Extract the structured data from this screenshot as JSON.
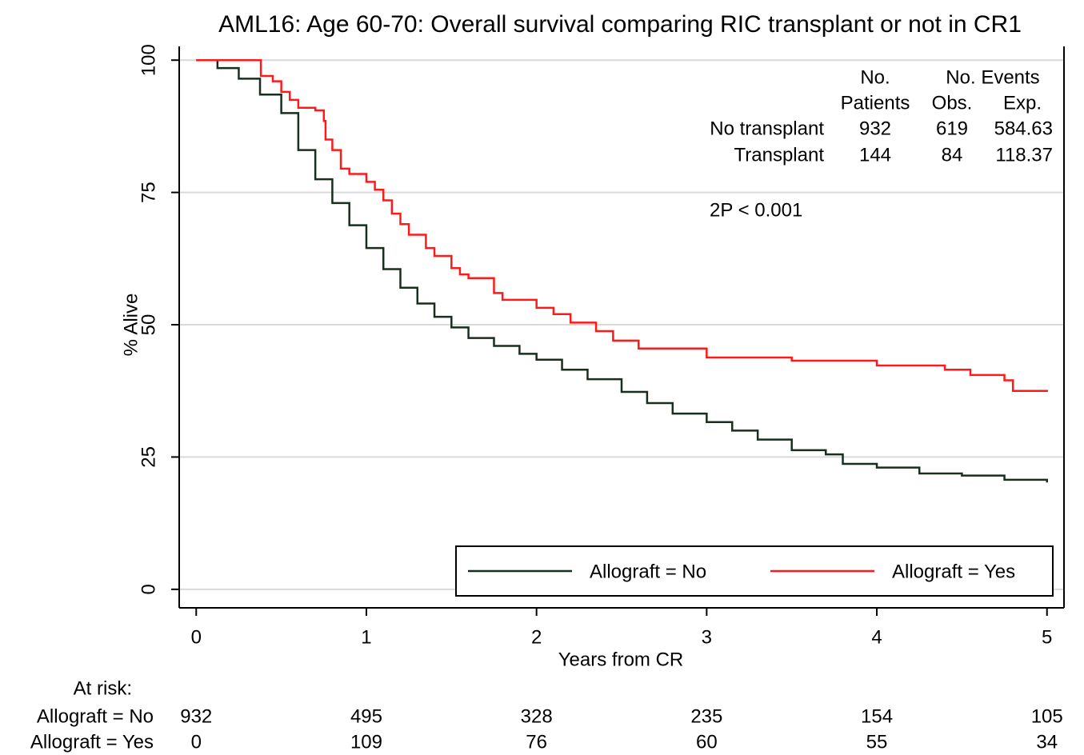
{
  "chart_data": {
    "type": "step",
    "title": "AML16: Age 60-70: Overall survival comparing RIC transplant or not in CR1",
    "x_label": "Years from CR",
    "y_label": "% Alive",
    "xlim": [
      -0.1,
      5.1
    ],
    "xticks": [
      0,
      1,
      2,
      3,
      4,
      5
    ],
    "ylim": [
      -3.5,
      102.6
    ],
    "yticks": [
      0,
      25,
      50,
      75,
      100
    ],
    "grid": true,
    "legend_position": "bottom-right",
    "series": [
      {
        "name": "Allograft = No",
        "color": "#1a2e1e",
        "x": [
          0,
          0.125,
          0.25,
          0.375,
          0.5,
          0.6,
          0.7,
          0.8,
          0.9,
          1.0,
          1.1,
          1.2,
          1.3,
          1.4,
          1.5,
          1.6,
          1.75,
          1.9,
          2.0,
          2.15,
          2.3,
          2.5,
          2.65,
          2.8,
          3.0,
          3.15,
          3.3,
          3.5,
          3.7,
          3.8,
          4.0,
          4.25,
          4.5,
          4.75,
          5.0
        ],
        "values": [
          100,
          98.5,
          96.5,
          93.5,
          90,
          83,
          77.5,
          73,
          68.8,
          64.5,
          60.5,
          57,
          54,
          51.5,
          49.5,
          47.5,
          46,
          44.5,
          43.4,
          41.5,
          39.7,
          37.3,
          35.2,
          33.2,
          31.6,
          30,
          28.3,
          26.3,
          25.5,
          23.7,
          23,
          21.9,
          21.5,
          20.7,
          20.2
        ]
      },
      {
        "name": "Allograft = Yes",
        "color": "#ff1a1a",
        "x": [
          0,
          0.38,
          0.45,
          0.5,
          0.55,
          0.6,
          0.7,
          0.75,
          0.76,
          0.8,
          0.85,
          0.9,
          1.0,
          1.05,
          1.1,
          1.15,
          1.2,
          1.25,
          1.35,
          1.4,
          1.5,
          1.55,
          1.6,
          1.75,
          1.8,
          2.0,
          2.1,
          2.2,
          2.35,
          2.45,
          2.6,
          3.0,
          3.5,
          4.0,
          4.4,
          4.55,
          4.75,
          4.8,
          5.0
        ],
        "values": [
          100,
          97,
          96,
          94,
          92.5,
          91,
          90.5,
          88.5,
          85,
          83,
          79.5,
          78.5,
          77,
          75.5,
          73.5,
          71,
          69,
          67,
          64.5,
          63,
          60.7,
          59.5,
          58.8,
          56,
          54.7,
          53.2,
          52,
          50.4,
          48.8,
          47,
          45.5,
          43.8,
          43.2,
          42.3,
          41.5,
          40.5,
          39.5,
          37.5,
          37.3
        ]
      }
    ],
    "stats": {
      "header_top": [
        "No.",
        "No. Events"
      ],
      "header_bottom": [
        "Patients",
        "Obs.",
        "Exp."
      ],
      "rows": [
        {
          "label": "No transplant",
          "values": [
            932,
            619,
            584.63
          ]
        },
        {
          "label": "Transplant",
          "values": [
            144,
            84,
            118.37
          ]
        }
      ]
    },
    "annotation": "2P < 0.001",
    "at_risk": {
      "title": "At risk:",
      "rows": [
        {
          "name": "Allograft = No",
          "values": [
            932,
            495,
            328,
            235,
            154,
            105
          ]
        },
        {
          "name": "Allograft = Yes",
          "values": [
            0,
            109,
            76,
            60,
            55,
            34
          ]
        }
      ]
    }
  }
}
